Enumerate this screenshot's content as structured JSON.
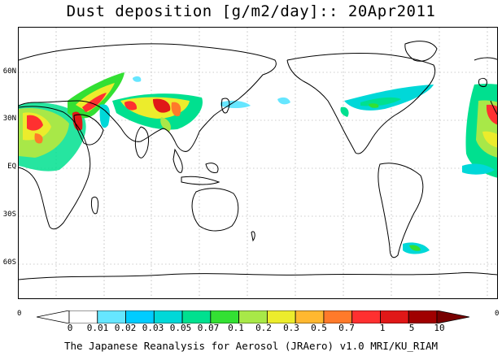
{
  "title": "Dust deposition [g/m2/day]:: 20Apr2011",
  "lat_labels": [
    "60N",
    "30N",
    "EQ",
    "30S",
    "60S"
  ],
  "colorbar": {
    "labels": [
      "0",
      "0.01",
      "0.02",
      "0.03",
      "0.05",
      "0.07",
      "0.1",
      "0.2",
      "0.3",
      "0.5",
      "0.7",
      "1",
      "5",
      "10"
    ],
    "colors": [
      "#ffffff",
      "#ffffff",
      "#66e6ff",
      "#00ccff",
      "#00d8d8",
      "#00e08f",
      "#33e033",
      "#a8e848",
      "#ecec2c",
      "#ffb830",
      "#ff7a2a",
      "#ff3030",
      "#e01818",
      "#a00000",
      "#780000"
    ],
    "end_left": "0",
    "end_right": "0"
  },
  "footer": "The Japanese Reanalysis for Aerosol (JRAero) v1.0 MRI/KU_RIAM"
}
